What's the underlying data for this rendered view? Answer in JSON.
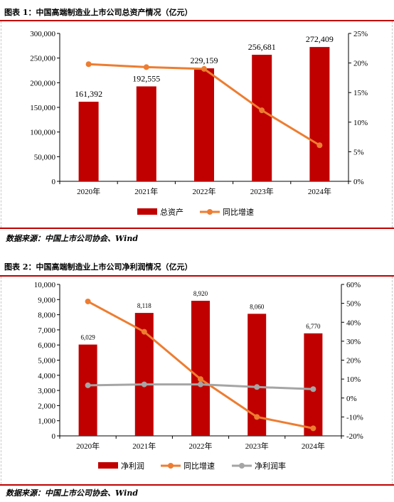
{
  "colors": {
    "bar": "#c00000",
    "growth": "#ed7d31",
    "margin": "#a5a5a5",
    "rule": "#c00000"
  },
  "chart1": {
    "title": "图表 1：中国高端制造业上市公司总资产情况（亿元）",
    "source": "数据来源：中国上市公司协会、Wind"
  },
  "chart2": {
    "title": "图表 2：中国高端制造业上市公司净利润情况（亿元）",
    "source": "数据来源：中国上市公司协会、Wind"
  },
  "chart_data": [
    {
      "type": "bar",
      "title": "图表 1：中国高端制造业上市公司总资产情况（亿元）",
      "categories": [
        "2020年",
        "2021年",
        "2022年",
        "2023年",
        "2024年"
      ],
      "series": [
        {
          "name": "总资产",
          "type": "bar",
          "axis": "left",
          "values": [
            161392,
            192555,
            229159,
            256681,
            272409
          ],
          "labels": [
            "161,392",
            "192,555",
            "229,159",
            "256,681",
            "272,409"
          ]
        },
        {
          "name": "同比增速",
          "type": "line",
          "axis": "right",
          "values": [
            19.8,
            19.3,
            19.0,
            12.0,
            6.1
          ]
        }
      ],
      "ylim": [
        0,
        300000
      ],
      "yticks": [
        "0",
        "50,000",
        "100,000",
        "150,000",
        "200,000",
        "250,000",
        "300,000"
      ],
      "y2lim": [
        0,
        25
      ],
      "y2ticks": [
        "0%",
        "5%",
        "10%",
        "15%",
        "20%",
        "25%"
      ],
      "legend": "bottom"
    },
    {
      "type": "bar",
      "title": "图表 2：中国高端制造业上市公司净利润情况（亿元）",
      "categories": [
        "2020年",
        "2021年",
        "2022年",
        "2023年",
        "2024年"
      ],
      "series": [
        {
          "name": "净利润",
          "type": "bar",
          "axis": "left",
          "values": [
            6029,
            8118,
            8920,
            8060,
            6770
          ],
          "labels": [
            "6,029",
            "8,118",
            "8,920",
            "8,060",
            "6,770"
          ]
        },
        {
          "name": "同比增速",
          "type": "line",
          "axis": "right",
          "values": [
            51,
            35,
            10,
            -10,
            -16
          ]
        },
        {
          "name": "净利润率",
          "type": "line",
          "axis": "right",
          "values": [
            6.7,
            7.2,
            7.2,
            5.8,
            4.7
          ]
        }
      ],
      "ylim": [
        0,
        10000
      ],
      "yticks": [
        "0",
        "1,000",
        "2,000",
        "3,000",
        "4,000",
        "5,000",
        "6,000",
        "7,000",
        "8,000",
        "9,000",
        "10,000"
      ],
      "y2lim": [
        -20,
        60
      ],
      "y2ticks": [
        "-20%",
        "-10%",
        "0%",
        "10%",
        "20%",
        "30%",
        "40%",
        "50%",
        "60%"
      ],
      "legend": "bottom"
    }
  ]
}
